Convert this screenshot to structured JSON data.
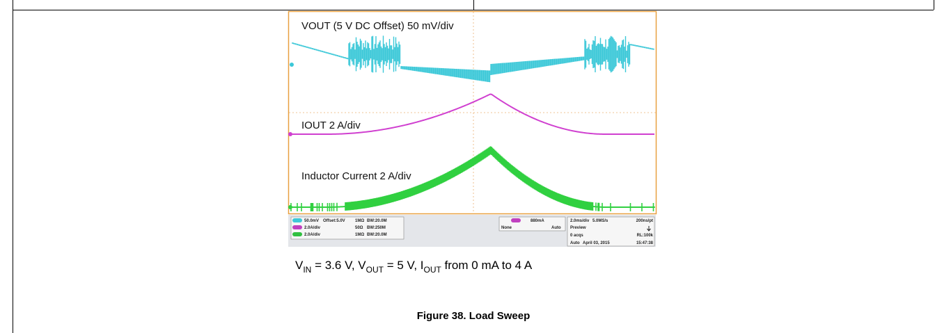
{
  "scope": {
    "trace_labels": [
      "VOUT (5 V DC Offset) 50 mV/div",
      "IOUT 2 A/div",
      "Inductor Current 2 A/div"
    ],
    "status": {
      "channels": [
        {
          "scale": "50.0mV",
          "offset": "Offset:5.0V",
          "impedance": "1MΩ",
          "bandwidth": "BW:20.0M"
        },
        {
          "scale": "2.0A/div",
          "impedance": "50Ω",
          "bandwidth": "BW:250M"
        },
        {
          "scale": "2.0A/div",
          "impedance": "1MΩ",
          "bandwidth": "BW:20.0M"
        }
      ],
      "trigger": {
        "level": "880mA",
        "coupling": "None",
        "mode": "Auto"
      },
      "timebase": {
        "scale": "2.0ms/div",
        "rate": "5.0MS/s",
        "resolution": "200ns/pt",
        "state": "Preview",
        "acqs": "0 acqs",
        "record": "RL:100k",
        "mode": "Auto",
        "date": "April 03, 2015",
        "time": "15:47:38"
      }
    }
  },
  "caption": {
    "segments": [
      "V",
      "IN",
      " = 3.6 V, V",
      "OUT",
      " = 5 V, I",
      "OUT",
      " from 0 mA to 4 A"
    ]
  },
  "figure_title": "Figure 38. Load Sweep"
}
